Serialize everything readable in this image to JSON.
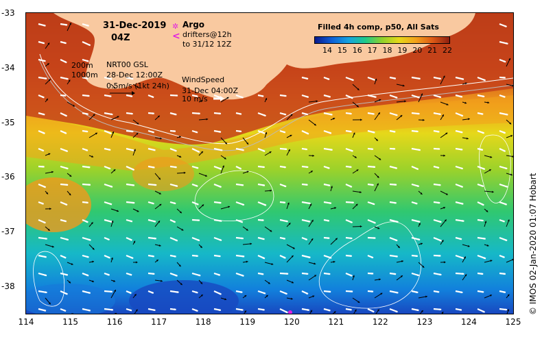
{
  "header": {
    "date": "31-Dec-2019",
    "time": "04Z",
    "argo_label": "Argo",
    "drifters_label": "drifters@12h",
    "drifters_to": "to 31/12 12Z"
  },
  "legend": {
    "contour_200": "200m",
    "contour_1000": "1000m",
    "currents_title": "NRT00 GSL",
    "currents_date": "28-Dec 12:00Z",
    "currents_scale": "0.5m/s (1kt 24h)",
    "wind_title": "WindSpeed",
    "wind_date": "31-Dec 04:00Z",
    "wind_scale": "10 m/s"
  },
  "colorbar": {
    "title": "Filled 4h comp, p50, All Sats",
    "labels": [
      "14",
      "15",
      "16",
      "17",
      "18",
      "19",
      "20",
      "21",
      "22"
    ],
    "colors": [
      "#0a1a8c",
      "#0f5fd6",
      "#16a3e0",
      "#1fc98a",
      "#8fd12c",
      "#e6d81a",
      "#f2a21b",
      "#dd5a16",
      "#8c1e10"
    ]
  },
  "axes": {
    "x_labels": [
      "114",
      "115",
      "116",
      "117",
      "118",
      "119",
      "120",
      "121",
      "122",
      "123",
      "124",
      "125"
    ],
    "y_labels": [
      "-33",
      "-34",
      "-35",
      "-36",
      "-37",
      "-38"
    ],
    "x_range": [
      114,
      125
    ],
    "y_range": [
      -38.5,
      -33
    ]
  },
  "credit": "© IMOS 02-Jan-2020 01:07 Hobart",
  "colors": {
    "land": "#f9c9a0",
    "argo": "#e020e0",
    "drifter": "#e020e0"
  }
}
